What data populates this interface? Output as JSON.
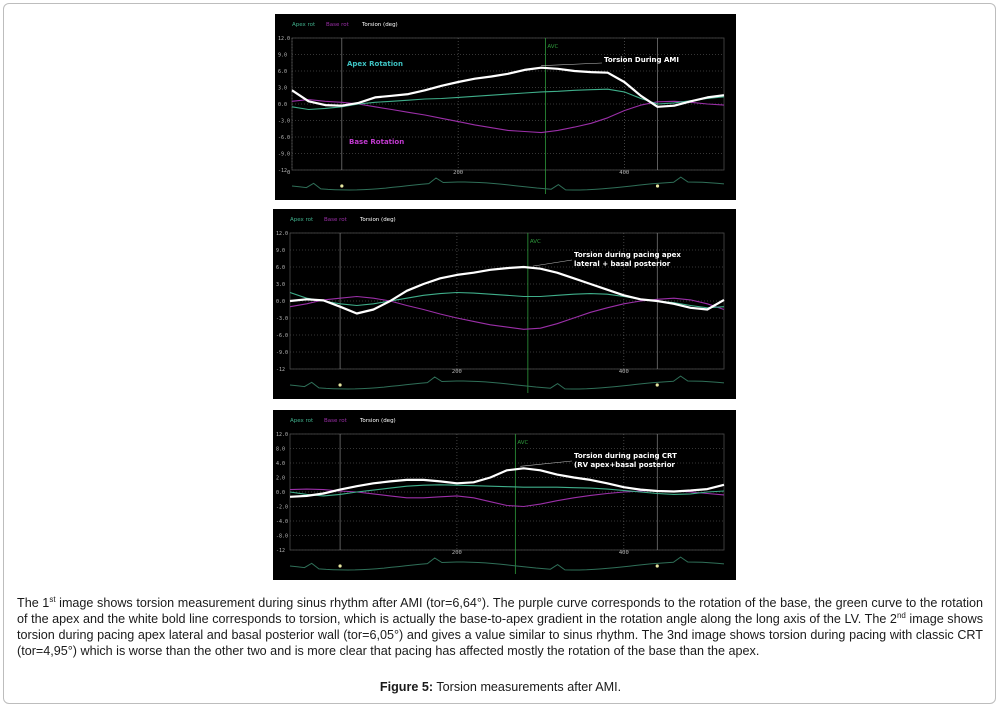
{
  "figure": {
    "label": "Figure 5:",
    "title": "Torsion measurements after AMI."
  },
  "caption": {
    "p1": "The 1",
    "s1": "st",
    "p2": " image shows torsion measurement during sinus rhythm after AMI (tor=6,64°). The purple curve corresponds to the rotation of the base, the green curve to the rotation of the apex and the white bold line corresponds to torsion, which is actually the base-to-apex gradient in the rotation angle along the long axis of the LV. The 2",
    "s2": "nd",
    "p3": " image shows torsion during pacing apex lateral and basal posterior wall (tor=6,05°) and gives a value similar to sinus rhythm. The 3nd image shows torsion during pacing with classic CRT (tor=4,95°) which is worse than the other two and is more clear that pacing has affected mostly the rotation of the base than the apex."
  },
  "colors": {
    "torsion": "#ffffff",
    "apex": "#3fae8a",
    "base": "#9b2fa8",
    "avc": "#2e9a3c",
    "grid": "#6c6c6c",
    "axis_text": "#b8b8b8"
  },
  "chart_data": [
    {
      "type": "line",
      "legend": [
        "Apex rot",
        "Base rot",
        "Torsion (deg)"
      ],
      "y_ticks": [
        "12.0",
        "9.0",
        "6.0",
        "3.0",
        "0.0",
        "-3.0",
        "-6.0",
        "-9.0",
        "-12"
      ],
      "ylim": [
        -12,
        12
      ],
      "x_ticks": [
        "0",
        "200",
        "400"
      ],
      "xlim": [
        0,
        520
      ],
      "marker": "AVC",
      "marker_x": 305,
      "annotations": [
        "Apex Rotation",
        "Torsion During AMI",
        "Base Rotation"
      ],
      "series": [
        {
          "name": "Torsion (deg)",
          "x": [
            0,
            20,
            40,
            60,
            80,
            100,
            120,
            140,
            160,
            180,
            200,
            220,
            240,
            260,
            280,
            300,
            320,
            340,
            360,
            380,
            400,
            420,
            440,
            460,
            480,
            500,
            520
          ],
          "y": [
            2.5,
            0.5,
            -0.2,
            -0.3,
            0.2,
            1.2,
            1.5,
            1.8,
            2.5,
            3.3,
            4.0,
            4.6,
            5.0,
            5.5,
            6.2,
            6.6,
            6.4,
            6.0,
            5.8,
            5.7,
            4.0,
            1.5,
            -0.5,
            -0.3,
            0.5,
            1.2,
            1.6
          ]
        },
        {
          "name": "Apex rot",
          "x": [
            0,
            20,
            40,
            60,
            80,
            100,
            120,
            140,
            160,
            180,
            200,
            220,
            240,
            260,
            280,
            300,
            320,
            340,
            360,
            380,
            400,
            420,
            440,
            460,
            480,
            500,
            520
          ],
          "y": [
            -0.5,
            -1.0,
            -0.8,
            -0.5,
            0.0,
            0.3,
            0.5,
            0.7,
            0.9,
            1.0,
            1.2,
            1.4,
            1.6,
            1.8,
            2.0,
            2.2,
            2.3,
            2.5,
            2.6,
            2.7,
            2.2,
            1.0,
            0.0,
            0.2,
            0.6,
            1.0,
            1.3
          ]
        },
        {
          "name": "Base rot",
          "x": [
            0,
            20,
            40,
            60,
            80,
            100,
            120,
            140,
            160,
            180,
            200,
            220,
            240,
            260,
            280,
            300,
            320,
            340,
            360,
            380,
            400,
            420,
            440,
            460,
            480,
            500,
            520
          ],
          "y": [
            0.5,
            0.8,
            0.5,
            0.3,
            0.0,
            -0.5,
            -1.0,
            -1.5,
            -2.0,
            -2.6,
            -3.2,
            -3.8,
            -4.3,
            -4.8,
            -5.0,
            -5.2,
            -4.8,
            -4.2,
            -3.5,
            -2.5,
            -1.2,
            -0.2,
            0.4,
            0.5,
            0.3,
            0.0,
            -0.2
          ]
        }
      ]
    },
    {
      "type": "line",
      "legend": [
        "Apex rot",
        "Base rot",
        "Torsion (deg)"
      ],
      "y_ticks": [
        "12.0",
        "9.0",
        "6.0",
        "3.0",
        "0.0",
        "-3.0",
        "-6.0",
        "-9.0",
        "-12"
      ],
      "ylim": [
        -12,
        12
      ],
      "x_ticks": [
        "200",
        "400"
      ],
      "xlim": [
        0,
        520
      ],
      "marker": "AVC",
      "marker_x": 285,
      "annotations": [
        "Torsion during pacing apex",
        "lateral + basal posterior"
      ],
      "series": [
        {
          "name": "Torsion (deg)",
          "x": [
            0,
            20,
            40,
            60,
            80,
            100,
            120,
            140,
            160,
            180,
            200,
            220,
            240,
            260,
            280,
            300,
            320,
            340,
            360,
            380,
            400,
            420,
            440,
            460,
            480,
            500,
            520
          ],
          "y": [
            0.0,
            0.3,
            0.1,
            -1.0,
            -2.2,
            -1.5,
            0.0,
            1.8,
            3.0,
            4.0,
            4.6,
            5.0,
            5.5,
            5.8,
            6.0,
            5.7,
            5.0,
            4.0,
            3.0,
            2.0,
            1.0,
            0.3,
            0.0,
            -0.5,
            -1.2,
            -1.5,
            0.2
          ]
        },
        {
          "name": "Apex rot",
          "x": [
            0,
            20,
            40,
            60,
            80,
            100,
            120,
            140,
            160,
            180,
            200,
            220,
            240,
            260,
            280,
            300,
            320,
            340,
            360,
            380,
            400,
            420,
            440,
            460,
            480,
            500,
            520
          ],
          "y": [
            1.5,
            0.5,
            0.0,
            -0.5,
            -0.8,
            -0.5,
            0.0,
            0.5,
            1.0,
            1.3,
            1.5,
            1.4,
            1.2,
            1.0,
            0.8,
            0.8,
            1.0,
            1.2,
            1.3,
            1.2,
            0.8,
            0.3,
            0.0,
            -0.3,
            -0.8,
            -1.2,
            -1.0
          ]
        },
        {
          "name": "Base rot",
          "x": [
            0,
            20,
            40,
            60,
            80,
            100,
            120,
            140,
            160,
            180,
            200,
            220,
            240,
            260,
            280,
            300,
            320,
            340,
            360,
            380,
            400,
            420,
            440,
            460,
            480,
            500,
            520
          ],
          "y": [
            -1.0,
            -0.5,
            0.2,
            0.5,
            0.8,
            0.5,
            0.0,
            -0.8,
            -1.5,
            -2.3,
            -3.0,
            -3.6,
            -4.2,
            -4.6,
            -5.0,
            -4.8,
            -4.0,
            -3.0,
            -2.0,
            -1.2,
            -0.5,
            0.0,
            0.3,
            0.5,
            0.2,
            -0.5,
            -1.5
          ]
        }
      ]
    },
    {
      "type": "line",
      "legend": [
        "Apex rot",
        "Base rot",
        "Torsion (deg)"
      ],
      "y_ticks": [
        "12.0",
        "8.0",
        "4.0",
        "2.0",
        "0.0",
        "-2.0",
        "-4.0",
        "-8.0",
        "-12"
      ],
      "ylim": [
        -12,
        12
      ],
      "x_ticks": [
        "200",
        "400"
      ],
      "xlim": [
        0,
        520
      ],
      "marker": "AVC",
      "marker_x": 270,
      "annotations": [
        "Torsion during pacing CRT",
        "(RV apex+basal posterior"
      ],
      "series": [
        {
          "name": "Torsion (deg)",
          "x": [
            0,
            20,
            40,
            60,
            80,
            100,
            120,
            140,
            160,
            180,
            200,
            220,
            240,
            260,
            280,
            300,
            320,
            340,
            360,
            380,
            400,
            420,
            440,
            460,
            480,
            500,
            520
          ],
          "y": [
            -1.0,
            -0.8,
            -0.3,
            0.5,
            1.2,
            1.8,
            2.2,
            2.5,
            2.5,
            2.2,
            1.8,
            2.0,
            3.0,
            4.5,
            4.9,
            4.5,
            3.6,
            3.0,
            2.5,
            1.8,
            1.0,
            0.5,
            0.2,
            0.1,
            0.3,
            0.6,
            1.5
          ]
        },
        {
          "name": "Apex rot",
          "x": [
            0,
            20,
            40,
            60,
            80,
            100,
            120,
            140,
            160,
            180,
            200,
            220,
            240,
            260,
            280,
            300,
            320,
            340,
            360,
            380,
            400,
            420,
            440,
            460,
            480,
            500,
            520
          ],
          "y": [
            0.0,
            -0.5,
            -0.8,
            -0.5,
            0.0,
            0.4,
            0.8,
            1.2,
            1.4,
            1.5,
            1.4,
            1.3,
            1.2,
            1.1,
            1.0,
            1.0,
            1.0,
            0.9,
            0.8,
            0.6,
            0.3,
            0.0,
            -0.3,
            -0.5,
            -0.4,
            0.0,
            0.2
          ]
        },
        {
          "name": "Base rot",
          "x": [
            0,
            20,
            40,
            60,
            80,
            100,
            120,
            140,
            160,
            180,
            200,
            220,
            240,
            260,
            280,
            300,
            320,
            340,
            360,
            380,
            400,
            420,
            440,
            460,
            480,
            500,
            520
          ],
          "y": [
            0.5,
            0.6,
            0.5,
            0.2,
            0.0,
            -0.4,
            -0.8,
            -1.2,
            -1.2,
            -1.0,
            -0.8,
            -1.2,
            -2.0,
            -2.8,
            -3.0,
            -2.5,
            -1.8,
            -1.2,
            -0.7,
            -0.3,
            0.0,
            0.2,
            0.3,
            0.2,
            0.0,
            -0.3,
            -0.6
          ]
        }
      ]
    }
  ]
}
